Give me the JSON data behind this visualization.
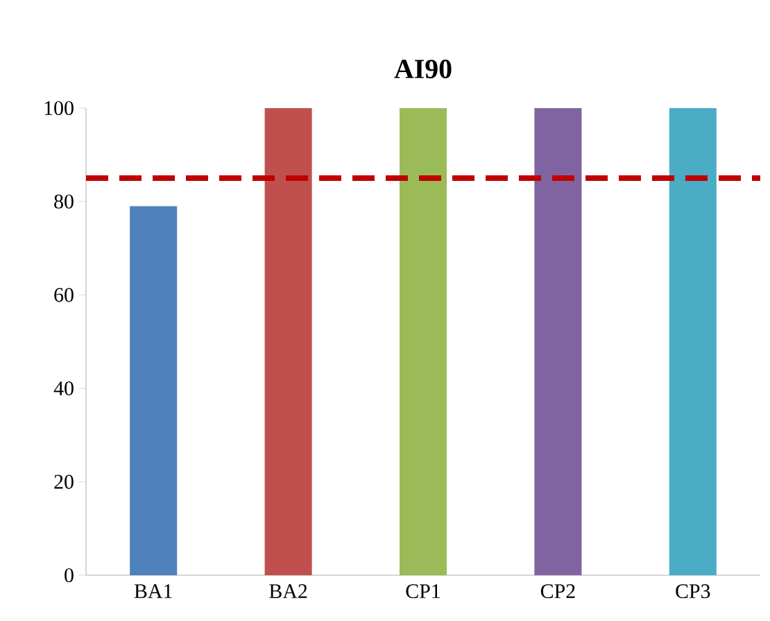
{
  "chart_data": {
    "type": "bar",
    "title": "AI90",
    "categories": [
      "BA1",
      "BA2",
      "CP1",
      "CP2",
      "CP3"
    ],
    "values": [
      79,
      100,
      100,
      100,
      100
    ],
    "colors": [
      "#4f81bd",
      "#c0504d",
      "#9bbb59",
      "#8064a2",
      "#4bacc6"
    ],
    "ylim": [
      0,
      100
    ],
    "yticks": [
      0,
      20,
      40,
      60,
      80,
      100
    ],
    "ref_lines": [
      {
        "axis": "y",
        "value": 85,
        "color": "#c00000",
        "line_style": "dashed"
      }
    ]
  }
}
